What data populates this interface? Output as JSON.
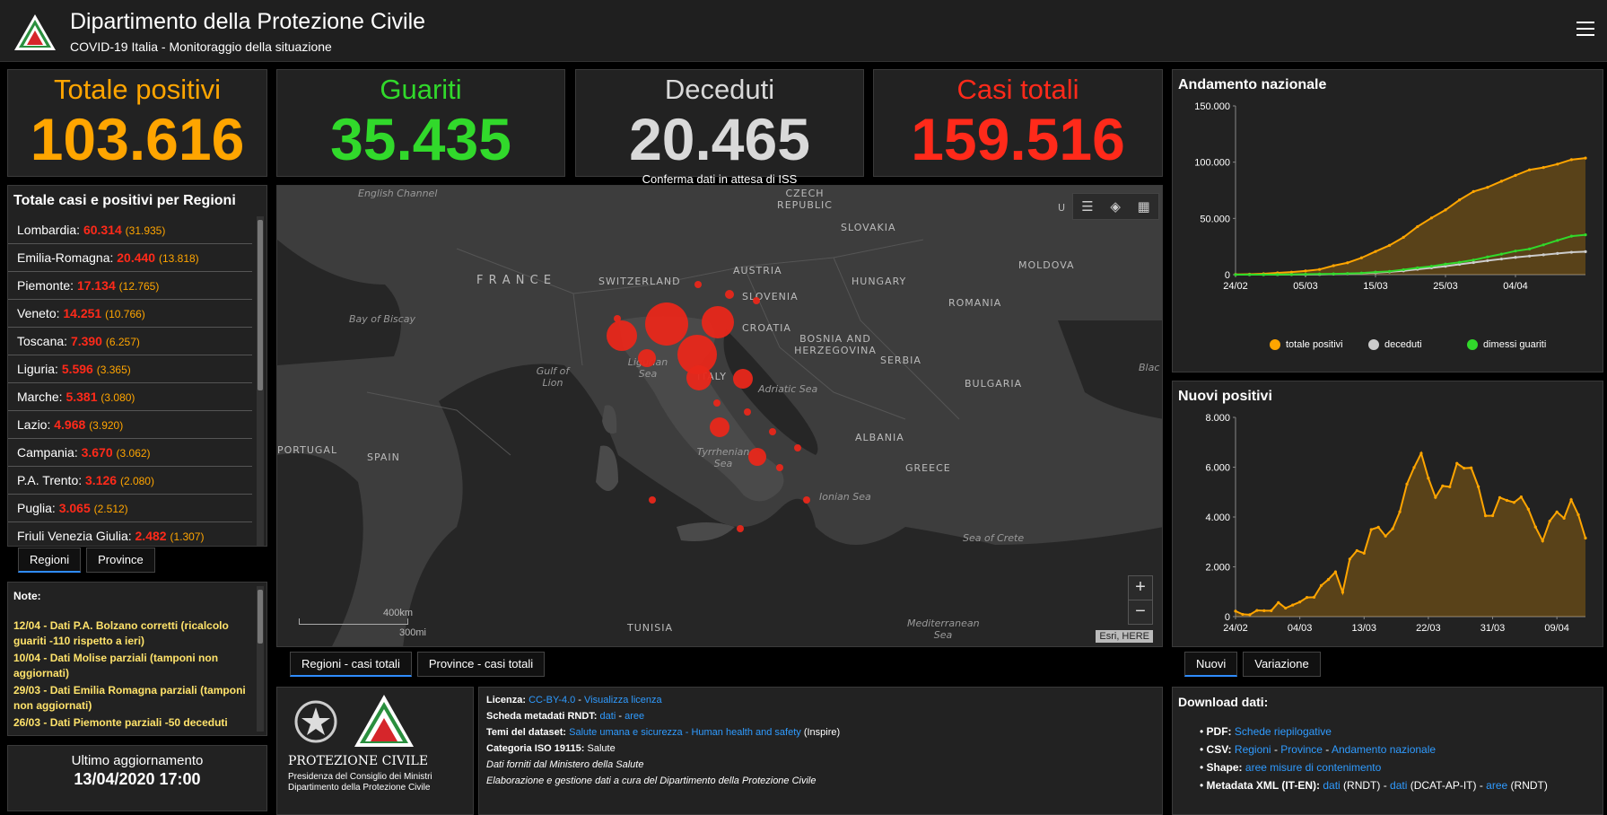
{
  "header": {
    "title": "Dipartimento della Protezione Civile",
    "subtitle": "COVID-19 Italia - Monitoraggio della situazione"
  },
  "kpis": {
    "positivi": {
      "label": "Totale positivi",
      "value": "103.616",
      "color": "#ffa500"
    },
    "guariti": {
      "label": "Guariti",
      "value": "35.435",
      "color": "#31d92b"
    },
    "deceduti": {
      "label": "Deceduti",
      "value": "20.465",
      "note": "Conferma dati in attesa di ISS",
      "color": "#d9d9d9"
    },
    "casi": {
      "label": "Casi totali",
      "value": "159.516",
      "color": "#ff2a1a"
    }
  },
  "regions": {
    "title": "Totale casi e positivi per Regioni",
    "items": [
      {
        "name": "Lombardia:",
        "total": "60.314",
        "positive": "(31.935)"
      },
      {
        "name": "Emilia-Romagna:",
        "total": "20.440",
        "positive": "(13.818)"
      },
      {
        "name": "Piemonte:",
        "total": "17.134",
        "positive": "(12.765)"
      },
      {
        "name": "Veneto:",
        "total": "14.251",
        "positive": "(10.766)"
      },
      {
        "name": "Toscana:",
        "total": "7.390",
        "positive": "(6.257)"
      },
      {
        "name": "Liguria:",
        "total": "5.596",
        "positive": "(3.365)"
      },
      {
        "name": "Marche:",
        "total": "5.381",
        "positive": "(3.080)"
      },
      {
        "name": "Lazio:",
        "total": "4.968",
        "positive": "(3.920)"
      },
      {
        "name": "Campania:",
        "total": "3.670",
        "positive": "(3.062)"
      },
      {
        "name": "P.A. Trento:",
        "total": "3.126",
        "positive": "(2.080)"
      },
      {
        "name": "Puglia:",
        "total": "3.065",
        "positive": "(2.512)"
      },
      {
        "name": "Friuli Venezia Giulia:",
        "total": "2.482",
        "positive": "(1.307)"
      }
    ],
    "tabs": [
      "Regioni",
      "Province"
    ]
  },
  "notes": {
    "label": "Note:",
    "items": [
      "12/04 - Dati P.A. Bolzano corretti (ricalcolo guariti -110 rispetto a ieri)",
      "10/04 - Dati  Molise parziali (tamponi non aggiornati)",
      "29/03 - Dati  Emilia Romagna parziali (tamponi non aggiornati)",
      "26/03 - Dati Piemonte parziali -50 deceduti"
    ]
  },
  "update": {
    "label": "Ultimo aggiornamento",
    "value": "13/04/2020 17:00"
  },
  "map": {
    "labels": {
      "english_channel": "English Channel",
      "czech": "CZECH REPUBLIC",
      "slovakia": "SLOVAKIA",
      "moldova": "MOLDOVA",
      "france": "F R A N C E",
      "switzerland": "SWITZERLAND",
      "austria": "AUSTRIA",
      "hungary": "HUNGARY",
      "slovenia": "SLOVENIA",
      "romania": "ROMANIA",
      "biscay": "Bay of Biscay",
      "croatia": "CROATIA",
      "bosnia": "BOSNIA AND HERZEGOVINA",
      "serbia": "SERBIA",
      "ligurian": "Ligurian Sea",
      "gulf_lion": "Gulf of Lion",
      "italy": "ITALY",
      "adriatic": "Adriatic Sea",
      "bulgaria": "BULGARIA",
      "black": "Blac",
      "portugal": "PORTUGAL",
      "spain": "SPAIN",
      "tyrrhenian": "Tyrrhenian Sea",
      "albania": "ALBANIA",
      "greece": "GREECE",
      "ionian": "Ionian Sea",
      "crete": "Sea of Crete",
      "tunisia": "TUNISIA",
      "mediterranean": "Mediterranean Sea",
      "u": "U"
    },
    "scale_km": "400km",
    "scale_mi": "300mi",
    "attribution": "Esri, HERE",
    "zoom_in": "+",
    "zoom_out": "−",
    "tabs": [
      "Regioni - casi totali",
      "Province - casi totali"
    ]
  },
  "info": {
    "logo_caption_1": "PROTEZIONE CIVILE",
    "logo_caption_2": "Presidenza del Consiglio dei Ministri",
    "logo_caption_3": "Dipartimento della Protezione Civile",
    "licenza_k": "Licenza:",
    "licenza_link1": "CC-BY-4.0",
    "licenza_sep": " - ",
    "licenza_link2": "Visualizza licenza",
    "scheda_k": "Scheda metadati RNDT:",
    "scheda_link1": "dati",
    "scheda_sep": " - ",
    "scheda_link2": "aree",
    "temi_k": "Temi del dataset:",
    "temi_link": "Salute umana e sicurezza - Human health and safety",
    "temi_tail": " (Inspire)",
    "iso_k": "Categoria ISO 19115:",
    "iso_v": " Salute",
    "fonte": "Dati forniti dal Ministero della Salute",
    "elab": "Elaborazione e gestione dati a cura del Dipartimento della Protezione Civile"
  },
  "chart1": {
    "title": "Andamento nazionale",
    "legend": [
      {
        "label": "totale positivi",
        "color": "#ffa500"
      },
      {
        "label": "deceduti",
        "color": "#cccccc"
      },
      {
        "label": "dimessi guariti",
        "color": "#31d92b"
      }
    ],
    "y_ticks": [
      "150.000",
      "100.000",
      "50.000",
      "0"
    ],
    "x_ticks": [
      "24/02",
      "05/03",
      "15/03",
      "25/03",
      "04/04"
    ]
  },
  "chart2": {
    "title": "Nuovi positivi",
    "y_ticks": [
      "8.000",
      "6.000",
      "4.000",
      "2.000",
      "0"
    ],
    "x_ticks": [
      "24/02",
      "04/03",
      "13/03",
      "22/03",
      "31/03",
      "09/04"
    ],
    "tabs": [
      "Nuovi",
      "Variazione"
    ]
  },
  "download": {
    "title": "Download dati:",
    "pdf_k": "PDF:",
    "pdf_link": "Schede riepilogative",
    "csv_k": "CSV:",
    "csv_l1": "Regioni",
    "csv_l2": "Province",
    "csv_l3": "Andamento nazionale",
    "csv_sep": " - ",
    "shape_k": "Shape:",
    "shape_link": "aree misure di contenimento",
    "xml_k": "Metadata XML (IT-EN):",
    "xml_l1": "dati",
    "xml_t1": " (RNDT) - ",
    "xml_l2": "dati",
    "xml_t2": " (DCAT-AP-IT) - ",
    "xml_l3": "aree",
    "xml_t3": " (RNDT)"
  },
  "chart_data": [
    {
      "type": "area",
      "title": "Andamento nazionale",
      "ylim": [
        0,
        150000
      ],
      "x": [
        "24/02",
        "26/02",
        "28/02",
        "01/03",
        "03/03",
        "05/03",
        "07/03",
        "09/03",
        "11/03",
        "13/03",
        "15/03",
        "17/03",
        "19/03",
        "21/03",
        "23/03",
        "25/03",
        "27/03",
        "29/03",
        "31/03",
        "02/04",
        "04/04",
        "06/04",
        "08/04",
        "10/04",
        "12/04",
        "13/04"
      ],
      "series": [
        {
          "name": "totale positivi",
          "color": "#ffa500",
          "values": [
            221,
            400,
            821,
            1577,
            2263,
            3296,
            4636,
            7985,
            10590,
            14955,
            20603,
            26062,
            33190,
            42681,
            50418,
            57521,
            66414,
            73880,
            77635,
            83049,
            88274,
            93187,
            95262,
            98273,
            102253,
            103616
          ]
        },
        {
          "name": "deceduti",
          "color": "#cccccc",
          "values": [
            7,
            12,
            21,
            34,
            79,
            148,
            233,
            463,
            827,
            1266,
            1809,
            2503,
            3405,
            4825,
            6077,
            7503,
            9134,
            10779,
            12428,
            13915,
            15362,
            16523,
            17669,
            18849,
            19899,
            20465
          ]
        },
        {
          "name": "dimessi guariti",
          "color": "#31d92b",
          "values": [
            1,
            3,
            46,
            83,
            160,
            414,
            589,
            724,
            1045,
            1439,
            2335,
            2941,
            4440,
            6072,
            7432,
            9362,
            10950,
            13030,
            15729,
            18278,
            20996,
            22837,
            26491,
            30455,
            34211,
            35435
          ]
        }
      ]
    },
    {
      "type": "area",
      "title": "Nuovi positivi",
      "ylim": [
        0,
        8000
      ],
      "x": [
        "24/02",
        "25/02",
        "26/02",
        "27/02",
        "28/02",
        "29/02",
        "01/03",
        "02/03",
        "03/03",
        "04/03",
        "05/03",
        "06/03",
        "07/03",
        "08/03",
        "09/03",
        "10/03",
        "11/03",
        "12/03",
        "13/03",
        "14/03",
        "15/03",
        "16/03",
        "17/03",
        "18/03",
        "19/03",
        "20/03",
        "21/03",
        "22/03",
        "23/03",
        "24/03",
        "25/03",
        "26/03",
        "27/03",
        "28/03",
        "29/03",
        "30/03",
        "31/03",
        "01/04",
        "02/04",
        "03/04",
        "04/04",
        "05/04",
        "06/04",
        "07/04",
        "08/04",
        "09/04",
        "10/04",
        "11/04",
        "12/04",
        "13/04"
      ],
      "series": [
        {
          "name": "Nuovi positivi",
          "color": "#ffa500",
          "values": [
            221,
            93,
            78,
            250,
            238,
            240,
            566,
            342,
            466,
            587,
            769,
            778,
            1247,
            1492,
            1797,
            977,
            2313,
            2651,
            2547,
            3497,
            3590,
            3233,
            3526,
            4207,
            5322,
            5986,
            6557,
            5560,
            4789,
            5249,
            5210,
            6153,
            5959,
            5974,
            5217,
            4050,
            4053,
            4782,
            4668,
            4585,
            4805,
            4316,
            3599,
            3039,
            3836,
            4204,
            3951,
            4694,
            4092,
            3153
          ]
        }
      ]
    }
  ]
}
